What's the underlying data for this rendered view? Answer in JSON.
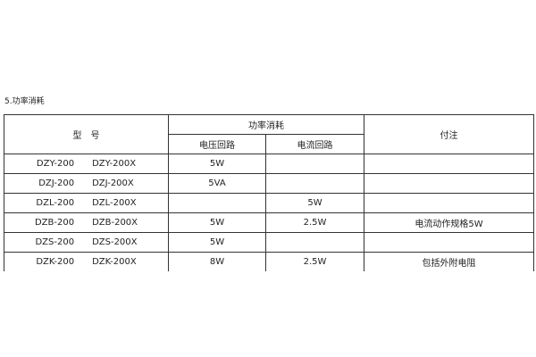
{
  "section_title": "5.功率消耗",
  "headers": {
    "model": "型　号",
    "power": "功率消耗",
    "voltage": "电压回路",
    "current": "电流回路",
    "note": "付注"
  },
  "rows": [
    {
      "model_a": "DZY-200",
      "model_b": "DZY-200X",
      "voltage": "5W",
      "current": "",
      "note": ""
    },
    {
      "model_a": "DZJ-200",
      "model_b": "DZJ-200X",
      "voltage": "5VA",
      "current": "",
      "note": ""
    },
    {
      "model_a": "DZL-200",
      "model_b": "DZL-200X",
      "voltage": "",
      "current": "5W",
      "note": ""
    },
    {
      "model_a": "DZB-200",
      "model_b": "DZB-200X",
      "voltage": "5W",
      "current": "2.5W",
      "note": "电流动作规格5W"
    },
    {
      "model_a": "DZS-200",
      "model_b": "DZS-200X",
      "voltage": "5W",
      "current": "",
      "note": ""
    },
    {
      "model_a": "DZK-200",
      "model_b": "DZK-200X",
      "voltage": "8W",
      "current": "2.5W",
      "note": "包括外附电阻"
    }
  ]
}
